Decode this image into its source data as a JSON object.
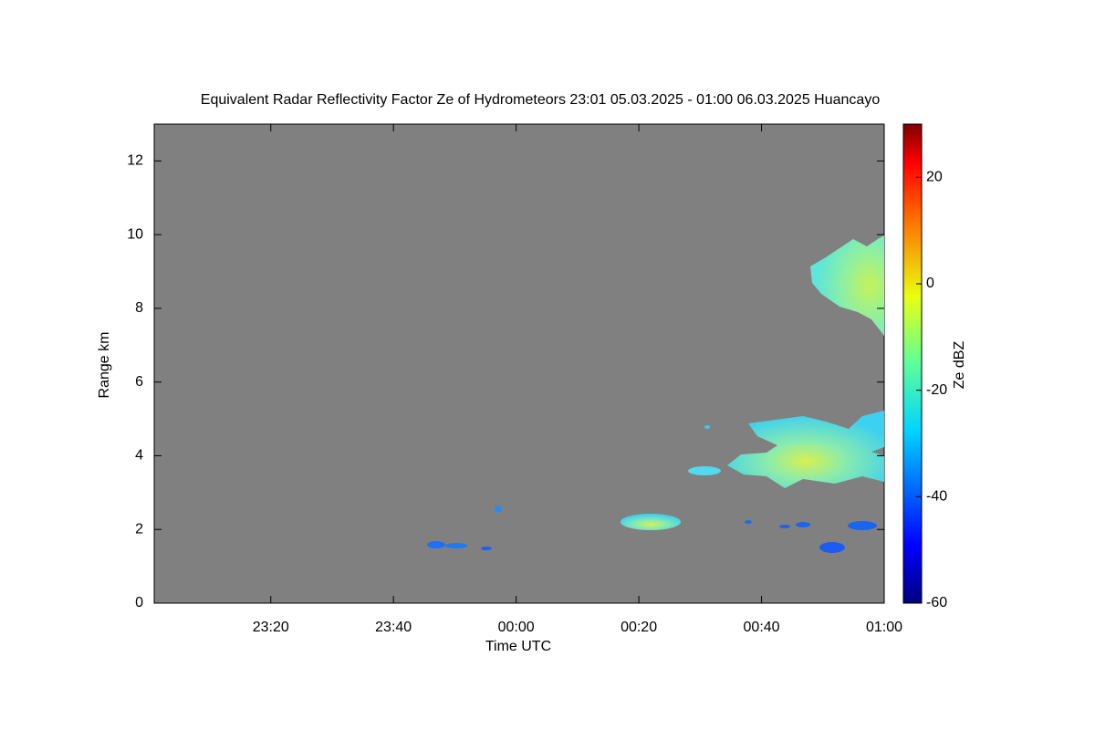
{
  "chart_data": {
    "type": "heatmap",
    "title": "Equivalent Radar Reflectivity Factor Ze of Hydrometeors   23:01 05.03.2025 - 01:00 06.03.2025 Huancayo",
    "xlabel": "Time UTC",
    "ylabel": "Range km",
    "background": "#808080",
    "xlim": [
      1381,
      1500
    ],
    "xticks": [
      {
        "value": 1400,
        "label": "23:20"
      },
      {
        "value": 1420,
        "label": "23:40"
      },
      {
        "value": 1440,
        "label": "00:00"
      },
      {
        "value": 1460,
        "label": "00:20"
      },
      {
        "value": 1480,
        "label": "00:40"
      },
      {
        "value": 1500,
        "label": "01:00"
      }
    ],
    "ylim": [
      0,
      13
    ],
    "yticks": [
      0,
      2,
      4,
      6,
      8,
      10,
      12
    ],
    "colorbar": {
      "label": "Ze dBZ",
      "lim": [
        -60,
        30
      ],
      "ticks": [
        -60,
        -40,
        -20,
        0,
        20
      ]
    }
  }
}
